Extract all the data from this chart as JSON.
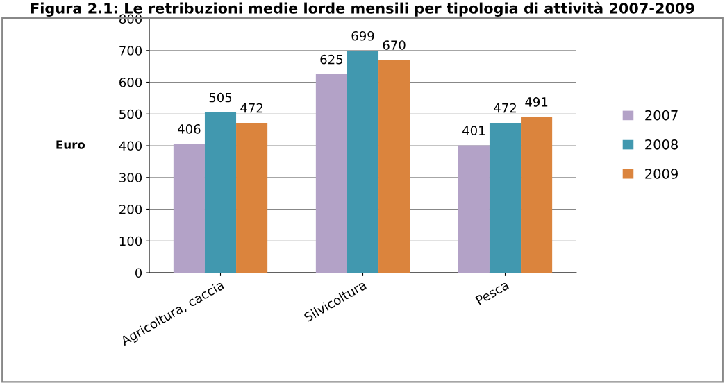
{
  "chart_data": {
    "type": "bar",
    "title": "Figura 2.1: Le retribuzioni medie lorde mensili per tipologia di attività 2007-2009",
    "ylabel": "Euro",
    "categories": [
      "Agricoltura, caccia",
      "Silvicoltura",
      "Pesca"
    ],
    "series": [
      {
        "name": "2007",
        "color": "#b3a2c7",
        "values": [
          406,
          625,
          401
        ]
      },
      {
        "name": "2008",
        "color": "#4198af",
        "values": [
          505,
          699,
          472
        ]
      },
      {
        "name": "2009",
        "color": "#db843d",
        "values": [
          472,
          670,
          491
        ]
      }
    ],
    "ylim": [
      0,
      800
    ],
    "yticks": [
      0,
      100,
      200,
      300,
      400,
      500,
      600,
      700,
      800
    ],
    "grid": "y",
    "legend": "right",
    "data_labels": true
  }
}
